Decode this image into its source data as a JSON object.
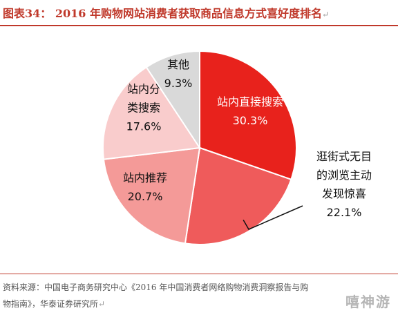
{
  "header": {
    "title": "图表34： 2016 年购物网站消费者获取商品信息方式喜好度排名",
    "mark": "↵"
  },
  "chart_data": {
    "type": "pie",
    "title": "",
    "slices": [
      {
        "label_lines": [
          "站内直接搜索"
        ],
        "value": 30.3,
        "value_label": "30.3%",
        "color": "#e8221c",
        "label_color": "#ffffff"
      },
      {
        "label_lines": [
          "逛街式无目",
          "的浏览主动",
          "发现惊喜"
        ],
        "value": 22.1,
        "value_label": "22.1%",
        "color": "#ef5b5b",
        "label_color": "#111111"
      },
      {
        "label_lines": [
          "站内推荐"
        ],
        "value": 20.7,
        "value_label": "20.7%",
        "color": "#f49a98",
        "label_color": "#111111"
      },
      {
        "label_lines": [
          "站内分",
          "类搜索"
        ],
        "value": 17.6,
        "value_label": "17.6%",
        "color": "#f9cccc",
        "label_color": "#111111"
      },
      {
        "label_lines": [
          "其他"
        ],
        "value": 9.3,
        "value_label": "9.3%",
        "color": "#d9d9d9",
        "label_color": "#111111"
      }
    ]
  },
  "source": {
    "line1": "资料来源：中国电子商务研究中心《2016 年中国消费者网络购物消费洞察报告与购",
    "line2": "物指南》，华泰证券研究所",
    "mark": "↵"
  },
  "watermark": "嘻神游"
}
